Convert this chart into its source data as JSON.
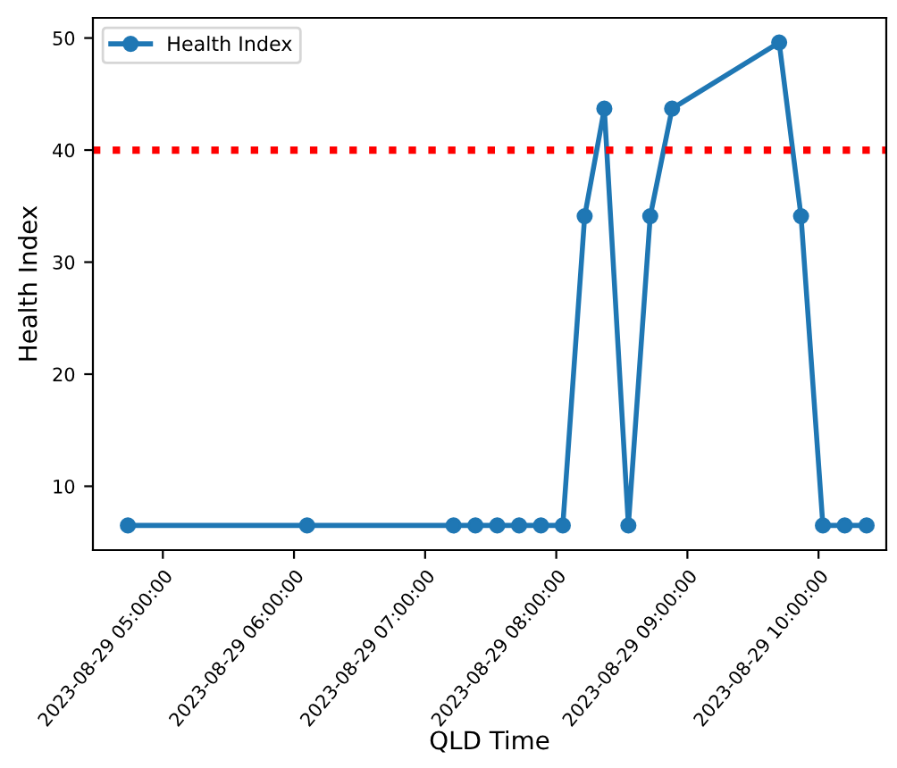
{
  "chart_data": {
    "type": "line",
    "xlabel": "QLD Time",
    "ylabel": "Health Index",
    "x": [
      "2023-08-29T04:44",
      "2023-08-29T06:06",
      "2023-08-29T07:13",
      "2023-08-29T07:23",
      "2023-08-29T07:33",
      "2023-08-29T07:43",
      "2023-08-29T07:53",
      "2023-08-29T08:03",
      "2023-08-29T08:13",
      "2023-08-29T08:22",
      "2023-08-29T08:33",
      "2023-08-29T08:43",
      "2023-08-29T08:53",
      "2023-08-29T09:42",
      "2023-08-29T09:52",
      "2023-08-29T10:02",
      "2023-08-29T10:12",
      "2023-08-29T10:22"
    ],
    "series": [
      {
        "name": "Health Index",
        "color": "#1f77b4",
        "values": [
          6.5,
          6.5,
          6.5,
          6.5,
          6.5,
          6.5,
          6.5,
          6.5,
          34.1,
          43.7,
          6.5,
          34.1,
          43.7,
          49.6,
          34.1,
          6.5,
          6.5,
          6.5
        ]
      }
    ],
    "xlim": [
      "2023-08-29T04:28",
      "2023-08-29T10:31"
    ],
    "xticks": [
      {
        "value": "2023-08-29T05:00",
        "label": "2023-08-29 05:00:00"
      },
      {
        "value": "2023-08-29T06:00",
        "label": "2023-08-29 06:00:00"
      },
      {
        "value": "2023-08-29T07:00",
        "label": "2023-08-29 07:00:00"
      },
      {
        "value": "2023-08-29T08:00",
        "label": "2023-08-29 08:00:00"
      },
      {
        "value": "2023-08-29T09:00",
        "label": "2023-08-29 09:00:00"
      },
      {
        "value": "2023-08-29T10:00",
        "label": "2023-08-29 10:00:00"
      }
    ],
    "ylim": [
      4.3,
      51.8
    ],
    "yticks": [
      10,
      20,
      30,
      40,
      50
    ],
    "ref_lines": [
      {
        "axis": "y",
        "value": 40,
        "color": "#ff0000",
        "line_style": "dotted"
      }
    ],
    "legend": "top left",
    "marker": "circle",
    "line_style": "solid",
    "grid": false
  }
}
